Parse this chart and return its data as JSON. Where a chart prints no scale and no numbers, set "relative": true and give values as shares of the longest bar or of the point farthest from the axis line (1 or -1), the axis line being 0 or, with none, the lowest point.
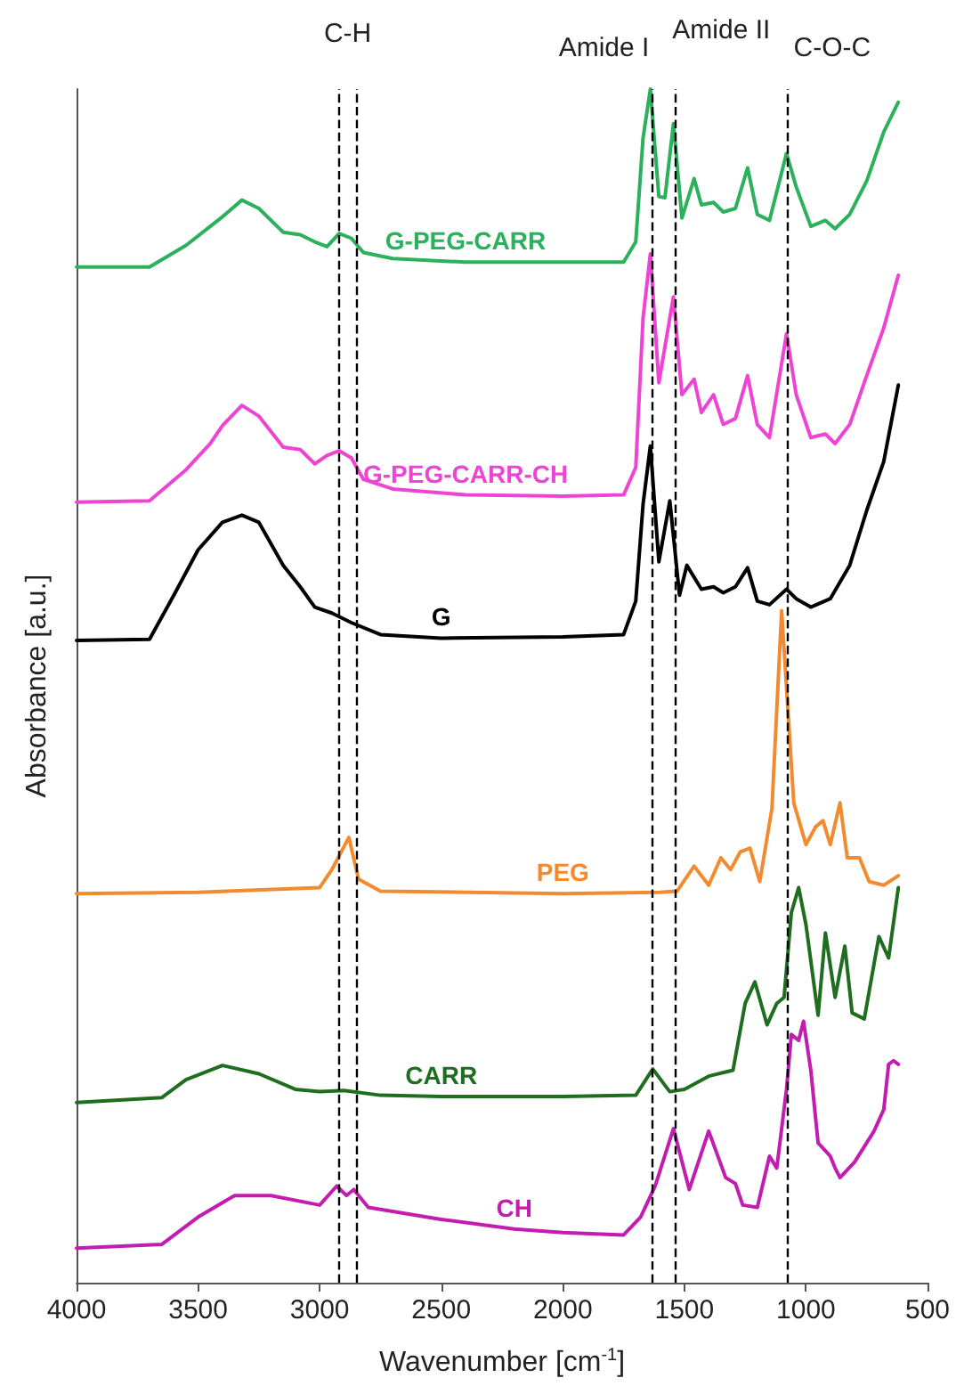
{
  "chart_data": {
    "type": "line",
    "xlabel": "Wavenumber [cm$^{-1}$]",
    "ylabel": "Absorbance [a.u.]",
    "relative": true,
    "legend": false,
    "grid": false,
    "marker": "none",
    "line_style": "solid",
    "xlim": [
      4000,
      500
    ],
    "xticks": [
      4000,
      3500,
      3000,
      2500,
      2000,
      1500,
      1000,
      500
    ],
    "ref_lines": [
      {
        "axis": "x",
        "value": 2920,
        "label": "C-H",
        "line_style": "dashed",
        "color": "#000000"
      },
      {
        "axis": "x",
        "value": 2850,
        "label": null,
        "line_style": "dashed",
        "color": "#000000"
      },
      {
        "axis": "x",
        "value": 1630,
        "label": "Amide I",
        "line_style": "dashed",
        "color": "#000000"
      },
      {
        "axis": "x",
        "value": 1535,
        "label": "Amide II",
        "line_style": "dashed",
        "color": "#000000"
      },
      {
        "axis": "x",
        "value": 1080,
        "label": "C-O-C",
        "line_style": "dashed",
        "color": "#000000"
      }
    ],
    "series": [
      {
        "name": "G-PEG-CARR",
        "color": "#2bb05c",
        "x": [
          4000,
          3700,
          3550,
          3450,
          3400,
          3320,
          3250,
          3150,
          3080,
          3020,
          2970,
          2920,
          2870,
          2820,
          2700,
          2400,
          2000,
          1750,
          1700,
          1670,
          1640,
          1605,
          1580,
          1545,
          1510,
          1460,
          1430,
          1380,
          1340,
          1290,
          1240,
          1200,
          1150,
          1080,
          1040,
          980,
          920,
          880,
          820,
          750,
          680,
          620
        ],
        "values": [
          0.851,
          0.851,
          0.869,
          0.885,
          0.893,
          0.907,
          0.9,
          0.88,
          0.878,
          0.872,
          0.868,
          0.879,
          0.875,
          0.863,
          0.858,
          0.855,
          0.855,
          0.855,
          0.872,
          0.959,
          1.0,
          0.91,
          0.909,
          0.971,
          0.892,
          0.925,
          0.903,
          0.905,
          0.897,
          0.9,
          0.934,
          0.895,
          0.89,
          0.946,
          0.918,
          0.885,
          0.89,
          0.883,
          0.895,
          0.923,
          0.964,
          0.989
        ]
      },
      {
        "name": "G-PEG-CARR-CH",
        "color": "#ee44d4",
        "x": [
          4000,
          3700,
          3550,
          3450,
          3400,
          3320,
          3250,
          3150,
          3080,
          3020,
          2970,
          2920,
          2870,
          2820,
          2700,
          2400,
          2000,
          1750,
          1700,
          1670,
          1640,
          1605,
          1545,
          1510,
          1460,
          1430,
          1380,
          1340,
          1290,
          1240,
          1200,
          1150,
          1080,
          1040,
          980,
          920,
          880,
          820,
          750,
          680,
          620
        ],
        "values": [
          0.654,
          0.655,
          0.681,
          0.703,
          0.718,
          0.735,
          0.726,
          0.7,
          0.698,
          0.686,
          0.693,
          0.697,
          0.691,
          0.673,
          0.665,
          0.66,
          0.659,
          0.66,
          0.683,
          0.808,
          0.862,
          0.754,
          0.826,
          0.744,
          0.757,
          0.729,
          0.744,
          0.719,
          0.724,
          0.76,
          0.719,
          0.708,
          0.795,
          0.744,
          0.708,
          0.711,
          0.703,
          0.719,
          0.76,
          0.8,
          0.844
        ]
      },
      {
        "name": "G",
        "color": "#000000",
        "x": [
          4000,
          3700,
          3600,
          3500,
          3400,
          3320,
          3250,
          3150,
          3080,
          3020,
          2950,
          2870,
          2750,
          2500,
          2000,
          1750,
          1700,
          1670,
          1640,
          1605,
          1560,
          1520,
          1490,
          1430,
          1380,
          1340,
          1290,
          1240,
          1200,
          1150,
          1080,
          1040,
          980,
          900,
          820,
          750,
          680,
          620
        ],
        "values": [
          0.538,
          0.539,
          0.576,
          0.614,
          0.637,
          0.643,
          0.637,
          0.601,
          0.583,
          0.566,
          0.561,
          0.553,
          0.543,
          0.54,
          0.541,
          0.543,
          0.571,
          0.652,
          0.701,
          0.604,
          0.655,
          0.576,
          0.601,
          0.581,
          0.583,
          0.578,
          0.583,
          0.599,
          0.571,
          0.568,
          0.581,
          0.573,
          0.566,
          0.573,
          0.601,
          0.647,
          0.688,
          0.752
        ]
      },
      {
        "name": "PEG",
        "color": "#f28a30",
        "x": [
          4000,
          3500,
          3000,
          2950,
          2880,
          2840,
          2750,
          2000,
          1600,
          1530,
          1460,
          1400,
          1350,
          1310,
          1270,
          1230,
          1190,
          1140,
          1100,
          1050,
          1000,
          960,
          930,
          900,
          860,
          830,
          780,
          740,
          680,
          620
        ],
        "values": [
          0.326,
          0.327,
          0.331,
          0.346,
          0.373,
          0.338,
          0.328,
          0.326,
          0.327,
          0.328,
          0.349,
          0.333,
          0.356,
          0.346,
          0.361,
          0.364,
          0.336,
          0.397,
          0.563,
          0.402,
          0.367,
          0.382,
          0.387,
          0.367,
          0.402,
          0.356,
          0.356,
          0.336,
          0.333,
          0.341
        ]
      },
      {
        "name": "CARR",
        "color": "#1f6e1f",
        "x": [
          4000,
          3650,
          3550,
          3400,
          3250,
          3100,
          3000,
          2900,
          2750,
          2500,
          2000,
          1700,
          1630,
          1560,
          1500,
          1400,
          1300,
          1250,
          1210,
          1160,
          1120,
          1090,
          1060,
          1030,
          1000,
          950,
          920,
          880,
          840,
          810,
          760,
          700,
          660,
          620
        ],
        "values": [
          0.151,
          0.155,
          0.17,
          0.182,
          0.175,
          0.162,
          0.16,
          0.161,
          0.157,
          0.156,
          0.156,
          0.157,
          0.179,
          0.16,
          0.162,
          0.173,
          0.178,
          0.234,
          0.252,
          0.216,
          0.234,
          0.239,
          0.31,
          0.331,
          0.3,
          0.224,
          0.293,
          0.239,
          0.282,
          0.226,
          0.221,
          0.29,
          0.272,
          0.331
        ]
      },
      {
        "name": "CH",
        "color": "#c21db0",
        "x": [
          4000,
          3650,
          3500,
          3350,
          3200,
          3000,
          2930,
          2890,
          2860,
          2800,
          2500,
          2200,
          2000,
          1750,
          1680,
          1620,
          1545,
          1480,
          1400,
          1330,
          1290,
          1260,
          1200,
          1150,
          1120,
          1080,
          1060,
          1030,
          1010,
          980,
          950,
          900,
          880,
          860,
          800,
          720,
          680,
          660,
          640,
          620
        ],
        "values": [
          0.029,
          0.032,
          0.055,
          0.073,
          0.073,
          0.065,
          0.081,
          0.073,
          0.078,
          0.063,
          0.053,
          0.045,
          0.042,
          0.04,
          0.055,
          0.081,
          0.129,
          0.078,
          0.127,
          0.088,
          0.083,
          0.065,
          0.063,
          0.106,
          0.096,
          0.162,
          0.208,
          0.203,
          0.219,
          0.178,
          0.117,
          0.106,
          0.096,
          0.088,
          0.101,
          0.127,
          0.145,
          0.183,
          0.186,
          0.183
        ]
      }
    ]
  }
}
